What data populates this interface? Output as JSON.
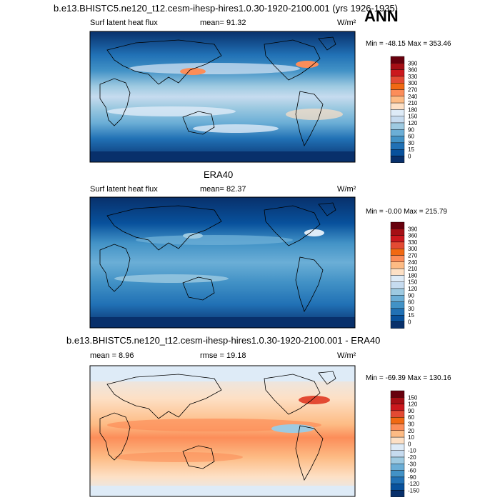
{
  "figure": {
    "season": "ANN"
  },
  "chart_data": [
    {
      "type": "heatmap",
      "title": "b.e13.BHISTC5.ne120_t12.cesm-ihesp-hires1.0.30-1920-2100.001 (yrs 1926-1935)",
      "variable": "Surf latent heat flux",
      "stat_text": "mean=  91.32",
      "mean": 91.32,
      "units": "W/m²",
      "minmax_text": "Min = -48.15 Max = 353.46",
      "min": -48.15,
      "max": 353.46,
      "levels": [
        "390",
        "360",
        "330",
        "300",
        "270",
        "240",
        "210",
        "180",
        "150",
        "120",
        "90",
        "60",
        "30",
        "15",
        "0"
      ],
      "colors": [
        "#67000d",
        "#a50f15",
        "#cb181d",
        "#e34a33",
        "#f16913",
        "#fc8d59",
        "#fdbb84",
        "#fde0c5",
        "#deebf7",
        "#c6dbef",
        "#9ecae1",
        "#6baed6",
        "#4292c6",
        "#2171b5",
        "#08519c",
        "#08306b"
      ]
    },
    {
      "type": "heatmap",
      "title": "ERA40",
      "variable": "Surf latent heat flux",
      "stat_text": "mean=  82.37",
      "mean": 82.37,
      "units": "W/m²",
      "minmax_text": "Min =  -0.00 Max = 215.79",
      "min": -0.0,
      "max": 215.79,
      "levels": [
        "390",
        "360",
        "330",
        "300",
        "270",
        "240",
        "210",
        "180",
        "150",
        "120",
        "90",
        "60",
        "30",
        "15",
        "0"
      ],
      "colors": [
        "#67000d",
        "#a50f15",
        "#cb181d",
        "#e34a33",
        "#f16913",
        "#fc8d59",
        "#fdbb84",
        "#fde0c5",
        "#deebf7",
        "#c6dbef",
        "#9ecae1",
        "#6baed6",
        "#4292c6",
        "#2171b5",
        "#08519c",
        "#08306b"
      ]
    },
    {
      "type": "heatmap",
      "title": "b.e13.BHISTC5.ne120_t12.cesm-ihesp-hires1.0.30-1920-2100.001 - ERA40",
      "variable": "mean =  8.96",
      "stat_text": "rmse =  19.18",
      "mean": 8.96,
      "rmse": 19.18,
      "units": "W/m²",
      "minmax_text": "Min = -69.39 Max = 130.16",
      "min": -69.39,
      "max": 130.16,
      "levels": [
        "150",
        "120",
        "90",
        "60",
        "30",
        "20",
        "10",
        "0",
        "-10",
        "-20",
        "-30",
        "-60",
        "-90",
        "-120",
        "-150"
      ],
      "colors": [
        "#67000d",
        "#a50f15",
        "#cb181d",
        "#e34a33",
        "#f16913",
        "#fc8d59",
        "#fdbb84",
        "#fde0c5",
        "#deebf7",
        "#c6dbef",
        "#9ecae1",
        "#6baed6",
        "#4292c6",
        "#2171b5",
        "#08519c",
        "#08306b"
      ]
    }
  ]
}
